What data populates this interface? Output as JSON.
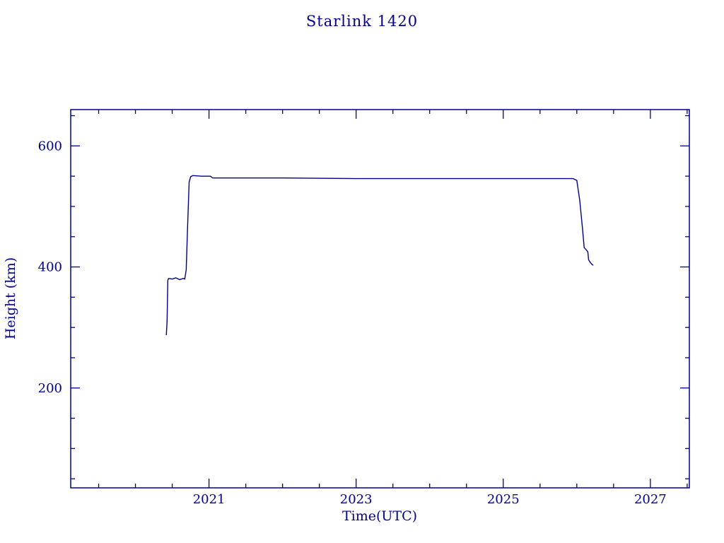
{
  "title": "Starlink 1420",
  "colors": {
    "axis": "#00008B",
    "line": "#00008B",
    "background": "#FFFFFF"
  },
  "chart_data": {
    "type": "line",
    "title": "Starlink 1420",
    "xlabel": "Time(UTC)",
    "ylabel": "Height (km)",
    "xlim": [
      2019.12,
      2027.53
    ],
    "ylim": [
      35,
      660
    ],
    "x_major_ticks": [
      2021,
      2023,
      2025,
      2027
    ],
    "x_minor_step": 0.5,
    "y_major_ticks": [
      200,
      400,
      600
    ],
    "y_minor_step": 50,
    "grid": false,
    "legend": false,
    "series": [
      {
        "name": "height_km",
        "points": [
          [
            2020.42,
            288
          ],
          [
            2020.43,
            310
          ],
          [
            2020.44,
            378
          ],
          [
            2020.45,
            381
          ],
          [
            2020.5,
            380
          ],
          [
            2020.55,
            382
          ],
          [
            2020.6,
            379
          ],
          [
            2020.65,
            381
          ],
          [
            2020.67,
            380
          ],
          [
            2020.69,
            395
          ],
          [
            2020.71,
            470
          ],
          [
            2020.73,
            540
          ],
          [
            2020.75,
            549
          ],
          [
            2020.78,
            551
          ],
          [
            2020.9,
            550
          ],
          [
            2021.02,
            550
          ],
          [
            2021.05,
            547
          ],
          [
            2022.0,
            547
          ],
          [
            2023.0,
            546
          ],
          [
            2024.0,
            546
          ],
          [
            2025.0,
            546
          ],
          [
            2025.95,
            546
          ],
          [
            2026.0,
            543
          ],
          [
            2026.04,
            510
          ],
          [
            2026.08,
            460
          ],
          [
            2026.1,
            432
          ],
          [
            2026.13,
            428
          ],
          [
            2026.15,
            425
          ],
          [
            2026.16,
            412
          ],
          [
            2026.18,
            408
          ],
          [
            2026.2,
            405
          ],
          [
            2026.22,
            403
          ]
        ]
      }
    ]
  }
}
